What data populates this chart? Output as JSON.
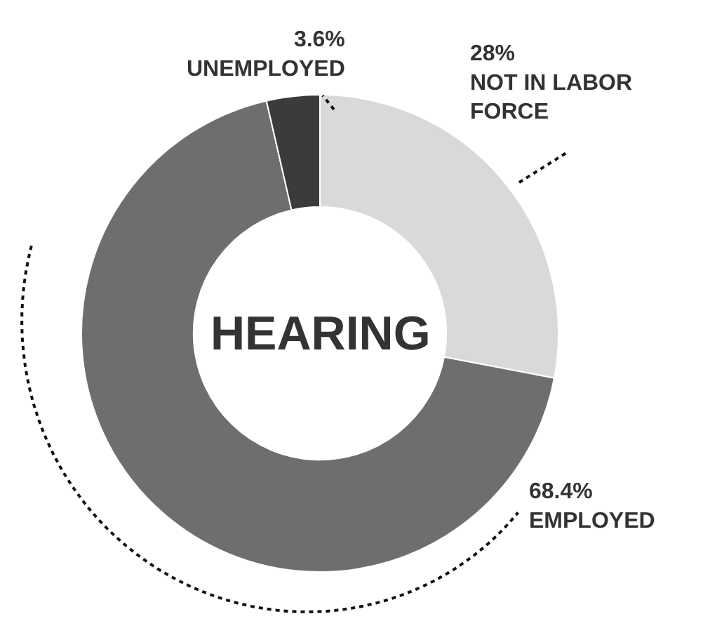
{
  "chart_data": {
    "type": "donut",
    "title": "HEARING",
    "categories": [
      "NOT IN LABOR FORCE",
      "EMPLOYED",
      "UNEMPLOYED"
    ],
    "values": [
      28,
      68.4,
      3.6
    ],
    "value_labels": [
      "28%",
      "68.4%",
      "3.6%"
    ],
    "colors": [
      "#d9d9d9",
      "#6e6e6e",
      "#3b3b3b"
    ],
    "legend": false
  }
}
